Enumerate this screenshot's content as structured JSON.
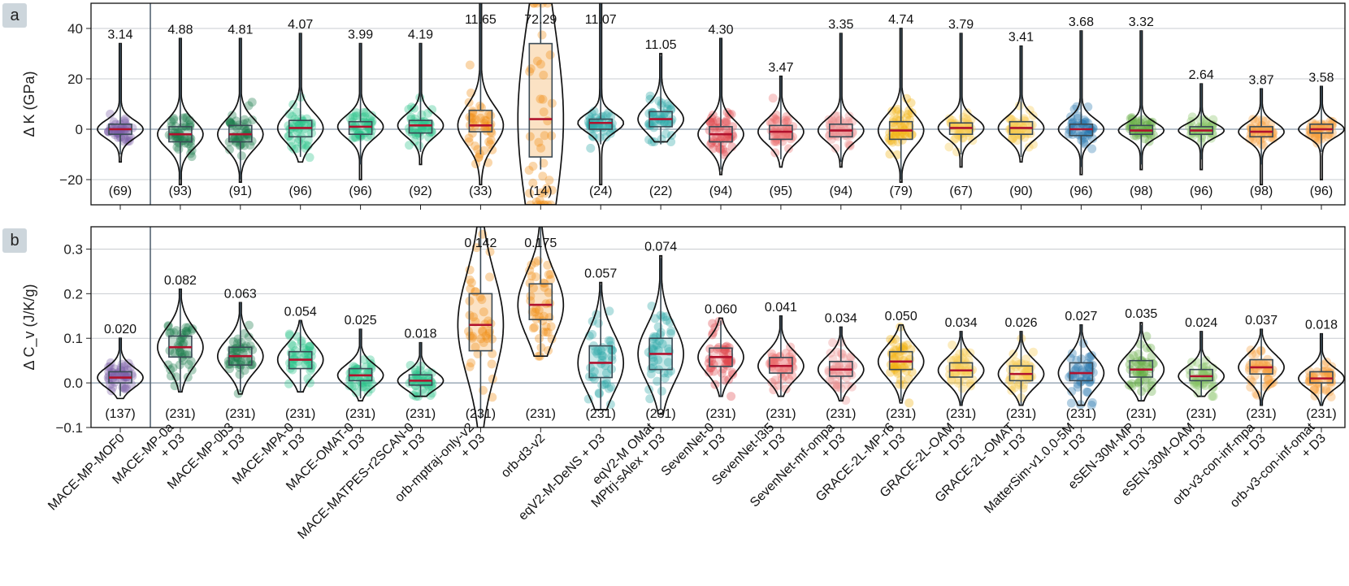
{
  "panels": [
    {
      "letter": "a"
    },
    {
      "letter": "b"
    }
  ],
  "colors": {
    "purple": "#7b5ea7",
    "darkgreen": "#1b7a4a",
    "green": "#2cc48a",
    "orange": "#f08c12",
    "teal": "#2aa6a6",
    "red": "#e0474c",
    "salmon": "#ea6e6e",
    "pink": "#ea9090",
    "gold": "#f2b10e",
    "yellow": "#f5c84a",
    "blue": "#2878b0",
    "lgreen": "#63ad42",
    "lgreen2": "#86c265",
    "lorange": "#f5a040",
    "median": "#b0112d"
  },
  "models": [
    {
      "label": [
        "MACE-MP-MOF0"
      ],
      "color": "purple"
    },
    {
      "label": [
        "MACE-MP-0a",
        "+ D3"
      ],
      "color": "darkgreen"
    },
    {
      "label": [
        "MACE-MP-0b3",
        "+ D3"
      ],
      "color": "darkgreen"
    },
    {
      "label": [
        "MACE-MPA-0",
        "+ D3"
      ],
      "color": "green"
    },
    {
      "label": [
        "MACE-OMAT-0",
        "+ D3"
      ],
      "color": "green"
    },
    {
      "label": [
        "MACE-MATPES-r2SCAN-0",
        "+ D3"
      ],
      "color": "green"
    },
    {
      "label": [
        "orb-mptraj-only-v2",
        "+ D3"
      ],
      "color": "orange"
    },
    {
      "label": [
        "orb-d3-v2"
      ],
      "color": "orange"
    },
    {
      "label": [
        "eqV2-M-DeNS + D3"
      ],
      "color": "teal"
    },
    {
      "label": [
        "eqV2-M OMat",
        "MPtrj-sAlex + D3"
      ],
      "color": "teal"
    },
    {
      "label": [
        "SevenNet-0",
        "+ D3"
      ],
      "color": "red"
    },
    {
      "label": [
        "SevenNet-l3i5",
        "+ D3"
      ],
      "color": "salmon"
    },
    {
      "label": [
        "SevenNet-mf-ompa",
        "+ D3"
      ],
      "color": "pink"
    },
    {
      "label": [
        "GRACE-2L-MP-r6",
        "+ D3"
      ],
      "color": "gold"
    },
    {
      "label": [
        "GRACE-2L-OAM",
        "+ D3"
      ],
      "color": "yellow"
    },
    {
      "label": [
        "GRACE-2L-OMAT",
        "+ D3"
      ],
      "color": "yellow"
    },
    {
      "label": [
        "MatterSim-v1.0.0-5M",
        "+ D3"
      ],
      "color": "blue"
    },
    {
      "label": [
        "eSEN-30M-MP",
        "+ D3"
      ],
      "color": "lgreen"
    },
    {
      "label": [
        "eSEN-30M-OAM",
        "+ D3"
      ],
      "color": "lgreen2"
    },
    {
      "label": [
        "orb-v3-con-inf-mpa",
        "+ D3"
      ],
      "color": "lorange"
    },
    {
      "label": [
        "orb-v3-con-inf-omat",
        "+ D3"
      ],
      "color": "lorange"
    }
  ],
  "chart_data": [
    {
      "type": "violin",
      "panel": "a",
      "ylabel": "Δ K (GPa)",
      "ylim": [
        -30,
        50
      ],
      "yticks": [
        -20,
        0,
        20,
        40
      ],
      "grid": true,
      "top_labels": [
        "3.14",
        "4.88",
        "4.81",
        "4.07",
        "3.99",
        "4.19",
        "11.65",
        "72.29",
        "11.07",
        "11.05",
        "4.30",
        "3.47",
        "3.35",
        "4.74",
        "3.79",
        "3.41",
        "3.68",
        "3.32",
        "2.64",
        "3.87",
        "3.58"
      ],
      "counts": [
        "(69)",
        "(93)",
        "(91)",
        "(96)",
        "(96)",
        "(92)",
        "(33)",
        "(14)",
        "(24)",
        "(22)",
        "(94)",
        "(95)",
        "(94)",
        "(79)",
        "(67)",
        "(90)",
        "(96)",
        "(98)",
        "(96)",
        "(98)",
        "(96)"
      ],
      "median": [
        0,
        -2,
        -2,
        0.5,
        1,
        1.5,
        1.5,
        4,
        2.5,
        4,
        -2,
        -1,
        -0.5,
        -0.5,
        0.5,
        0.5,
        0,
        -0.5,
        -0.5,
        -1,
        0
      ],
      "q1": [
        -2,
        -5,
        -5,
        -3,
        -2,
        -1.5,
        -1,
        -11,
        0,
        1,
        -5,
        -4,
        -3,
        -4,
        -2,
        -2,
        -2.5,
        -2,
        -2,
        -3,
        -1.5
      ],
      "q3": [
        2,
        1,
        1.5,
        3.5,
        3,
        3.5,
        7.5,
        34,
        4,
        7,
        1,
        1.5,
        2,
        3,
        2.5,
        3,
        2,
        1.5,
        1,
        1,
        2
      ],
      "wlow": [
        -10,
        -20,
        -20,
        -11,
        -14,
        -9,
        -10,
        -16,
        -6,
        -6,
        -16,
        -12,
        -13,
        -20,
        -10,
        -11,
        -15,
        -14,
        -12,
        -14,
        -9
      ],
      "whigh": [
        34,
        36,
        36,
        38,
        34,
        34,
        50,
        50,
        50,
        29,
        36,
        21,
        38,
        40,
        38,
        33,
        39,
        39,
        18,
        16,
        17
      ],
      "vmin": [
        -13,
        -22,
        -21,
        -13,
        -20,
        -14,
        -22,
        -30,
        -22,
        -5,
        -18,
        -15,
        -15,
        -21,
        -15,
        -13,
        -18,
        -16,
        -16,
        -22,
        -20
      ],
      "vmax": [
        34,
        36,
        36,
        38,
        34,
        34,
        50,
        50,
        50,
        30,
        36,
        21,
        38,
        40,
        38,
        33,
        39,
        39,
        18,
        16,
        17
      ],
      "bw": [
        5.5,
        5.5,
        5.5,
        5.5,
        5.5,
        5.5,
        9,
        9,
        8,
        8,
        5.5,
        5.5,
        5.5,
        5.5,
        5.5,
        5.5,
        5.5,
        5.5,
        5,
        5.5,
        5.5
      ]
    },
    {
      "type": "violin",
      "panel": "b",
      "ylabel": "Δ C_v (J/K/g)",
      "ylim": [
        -0.1,
        0.35
      ],
      "yticks": [
        -0.1,
        0.0,
        0.1,
        0.2,
        0.3
      ],
      "ytick_labels": [
        "−0.1",
        "0.0",
        "0.1",
        "0.2",
        "0.3"
      ],
      "grid": true,
      "top_labels": [
        "0.020",
        "0.082",
        "0.063",
        "0.054",
        "0.025",
        "0.018",
        "0.142",
        "0.175",
        "0.057",
        "0.074",
        "0.060",
        "0.041",
        "0.034",
        "0.050",
        "0.034",
        "0.026",
        "0.027",
        "0.035",
        "0.024",
        "0.037",
        "0.018"
      ],
      "counts": [
        "(137)",
        "(231)",
        "(231)",
        "(231)",
        "(231)",
        "(231)",
        "(231)",
        "(231)",
        "(231)",
        "(231)",
        "(231)",
        "(231)",
        "(231)",
        "(231)",
        "(231)",
        "(231)",
        "(231)",
        "(231)",
        "(231)",
        "(231)",
        "(231)"
      ],
      "median": [
        0.012,
        0.08,
        0.06,
        0.052,
        0.017,
        0.005,
        0.13,
        0.175,
        0.045,
        0.065,
        0.058,
        0.038,
        0.03,
        0.048,
        0.028,
        0.02,
        0.022,
        0.03,
        0.015,
        0.035,
        0.01
      ],
      "q1": [
        0.0,
        0.058,
        0.04,
        0.032,
        0.005,
        -0.005,
        0.072,
        0.142,
        0.012,
        0.03,
        0.037,
        0.022,
        0.015,
        0.03,
        0.013,
        0.005,
        0.005,
        0.013,
        0.005,
        0.02,
        0.0
      ],
      "q3": [
        0.025,
        0.105,
        0.08,
        0.07,
        0.032,
        0.018,
        0.2,
        0.222,
        0.083,
        0.1,
        0.078,
        0.057,
        0.048,
        0.07,
        0.045,
        0.038,
        0.045,
        0.05,
        0.03,
        0.052,
        0.025
      ],
      "wlow": [
        -0.03,
        -0.02,
        -0.02,
        -0.02,
        -0.035,
        -0.03,
        -0.08,
        0.06,
        -0.06,
        -0.06,
        -0.03,
        -0.03,
        -0.04,
        -0.04,
        -0.05,
        -0.05,
        -0.05,
        -0.04,
        -0.03,
        -0.05,
        -0.05
      ],
      "whigh": [
        0.1,
        0.21,
        0.18,
        0.14,
        0.12,
        0.09,
        0.35,
        0.35,
        0.22,
        0.28,
        0.14,
        0.15,
        0.125,
        0.13,
        0.115,
        0.115,
        0.13,
        0.13,
        0.115,
        0.12,
        0.11
      ],
      "vmin": [
        -0.035,
        -0.02,
        -0.025,
        -0.02,
        -0.04,
        -0.03,
        -0.1,
        0.06,
        -0.06,
        -0.07,
        -0.03,
        -0.03,
        -0.04,
        -0.045,
        -0.05,
        -0.05,
        -0.05,
        -0.04,
        -0.03,
        -0.05,
        -0.05
      ],
      "vmax": [
        0.1,
        0.21,
        0.18,
        0.14,
        0.12,
        0.09,
        0.35,
        0.35,
        0.225,
        0.285,
        0.145,
        0.15,
        0.125,
        0.13,
        0.115,
        0.115,
        0.13,
        0.135,
        0.115,
        0.12,
        0.11
      ],
      "bw": [
        0.022,
        0.03,
        0.028,
        0.025,
        0.022,
        0.02,
        0.06,
        0.05,
        0.04,
        0.045,
        0.025,
        0.025,
        0.022,
        0.025,
        0.022,
        0.022,
        0.025,
        0.025,
        0.02,
        0.022,
        0.02
      ]
    }
  ]
}
